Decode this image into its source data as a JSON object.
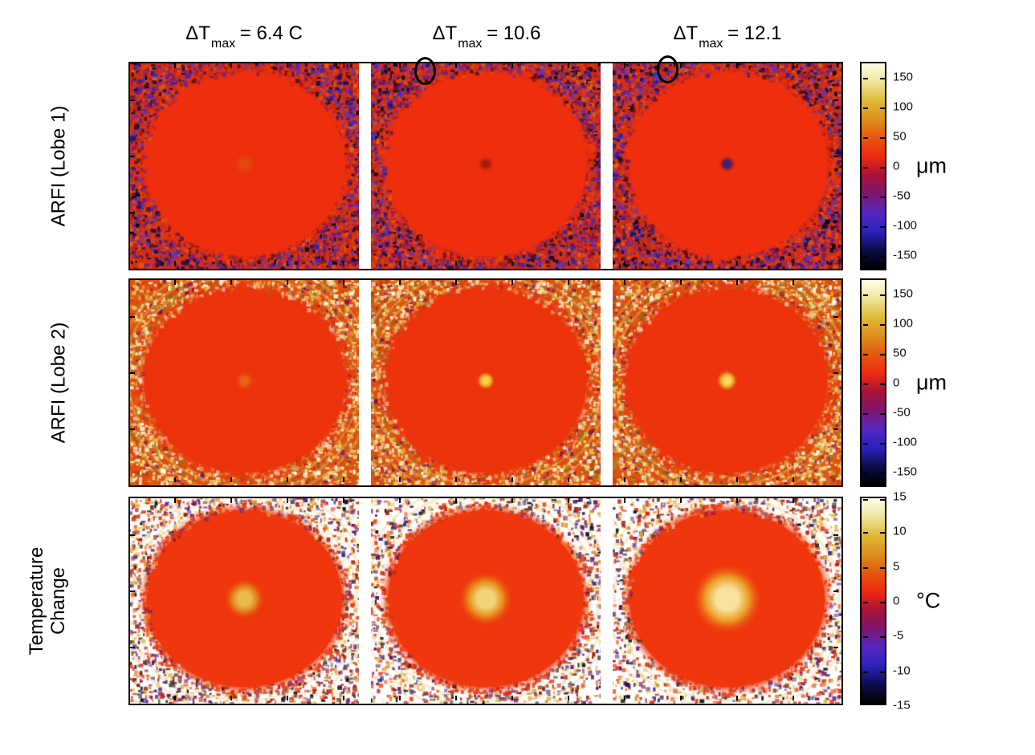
{
  "figure": {
    "column_titles": [
      {
        "prefix": "ΔT",
        "sub": "max",
        "rest": " = 6.4 C"
      },
      {
        "prefix": "ΔT",
        "sub": "max",
        "rest": " = 10.6"
      },
      {
        "prefix": "ΔT",
        "sub": "max",
        "rest": " = 12.1"
      }
    ],
    "row_labels": [
      "ARFI (Lobe 1)",
      "ARFI (Lobe 2)",
      "Temperature Change"
    ]
  },
  "chart_data": {
    "type": "heatmap",
    "grid": "3 rows x 3 columns of parametric images; each row shares one colorbar",
    "columns": [
      "ΔTmax = 6.4 C",
      "ΔTmax = 10.6",
      "ΔTmax = 12.1"
    ],
    "rows": [
      {
        "label": "ARFI (Lobe 1)",
        "unit": "μm",
        "colorbar_ticks": [
          150,
          100,
          50,
          0,
          -50,
          -100,
          -150
        ],
        "colorbar_range": [
          -175,
          175
        ],
        "content": "large uniform red (≈0 μm) disc filling panel; blue/black/orange speckle noise in corners; small dark focal dot appears at panel center as ΔTmax increases (dark-blue dot at 12.1)"
      },
      {
        "label": "ARFI (Lobe 2)",
        "unit": "μm",
        "colorbar_ticks": [
          150,
          100,
          50,
          0,
          -50,
          -100,
          -150
        ],
        "colorbar_range": [
          -175,
          175
        ],
        "content": "large red disc; cream/yellow/white speckle noise in corners; bright yellow focal spot at center grows with ΔTmax"
      },
      {
        "label": "Temperature Change",
        "unit": "°C",
        "colorbar_ticks": [
          15,
          10,
          5,
          0,
          -5,
          -10,
          -15
        ],
        "colorbar_range": [
          -15,
          15
        ],
        "content": "red disc with yellow-white heated focal region at center growing with ΔTmax; white background with sparse colored speckle in corners"
      }
    ],
    "colormap_bottom_to_top": [
      "#000000",
      "#0d0b48",
      "#2a22bc",
      "#5527c2",
      "#7d1670",
      "#a8123a",
      "#ee2a10",
      "#e4570f",
      "#dd8f1b",
      "#dfba36",
      "#efe49a",
      "#fffdea"
    ],
    "annotations": [
      {
        "type": "circle-marker",
        "row": 0,
        "col": 1,
        "desc": "black ellipse marker straddling top edge of panel"
      },
      {
        "type": "circle-marker",
        "row": 0,
        "col": 2,
        "desc": "black ellipse marker straddling top edge of panel"
      }
    ],
    "legend_position": "right colorbars",
    "grid_lines": "off"
  },
  "render": {
    "rows": [
      {
        "noise_base": "#d8300e",
        "noise_density": 0.8,
        "noise_palette": [
          "#2a1db0",
          "#3c2cc4",
          "#150a52",
          "#000000",
          "#6a1a8a",
          "#e0490f",
          "#f23b10",
          "#c22208",
          "#4a3ad4",
          "#0a063a",
          "#8a1040",
          "#e06a10"
        ],
        "ripple_color": "rgba(70,45,210,0.28)",
        "disc_color": "#ee2e0d",
        "disc_rx": 0.452,
        "disc_ry": 0.462,
        "panels": [
          {
            "core": "#e25b12",
            "glow": "#dc4a10",
            "glowR": 15,
            "alpha": 0.55,
            "density": 1
          },
          {
            "core": "#96150a",
            "glow": "#c22410",
            "glowR": 11,
            "alpha": 0.8,
            "density": 1
          },
          {
            "core": "#23268c",
            "glow": "#a01a28",
            "glowR": 11,
            "alpha": 0.95,
            "coreStop": 0.32,
            "density": 1
          }
        ]
      },
      {
        "noise_base": "#e05510",
        "noise_density": 0.8,
        "noise_palette": [
          "#f7f2c8",
          "#efe08a",
          "#d9b83a",
          "#ffffff",
          "#a8862a",
          "#f23b10",
          "#d84a10",
          "#7a1458",
          "#e8d060",
          "#fdfbe0",
          "#c23a0a",
          "#8a6a18"
        ],
        "ripple_color": "rgba(235,210,120,0.35)",
        "disc_color": "#ec330c",
        "disc_rx": 0.452,
        "disc_ry": 0.462,
        "panels": [
          {
            "core": "#ea8418",
            "glow": "#e45c12",
            "glowR": 13,
            "alpha": 0.6,
            "density": 1
          },
          {
            "core": "#ffd84e",
            "glow": "#efa01e",
            "glowR": 12,
            "alpha": 0.95,
            "density": 1
          },
          {
            "core": "#ffe066",
            "glow": "#efa01e",
            "glowR": 14,
            "alpha": 0.95,
            "density": 1
          }
        ]
      },
      {
        "noise_base": "#ffffff",
        "noise_density": 0.58,
        "noise_palette": [
          "#f23b10",
          "#d82a0a",
          "#e8c050",
          "#141414",
          "#5a1070",
          "#d89020",
          "#ffffff",
          "#f2f0e0",
          "#a01a08",
          "#3a2a90"
        ],
        "ripple_color": "rgba(230,180,80,0.25)",
        "disc_color": "#ef360c",
        "disc_rx": 0.44,
        "disc_ry": 0.445,
        "panels": [
          {
            "core": "#e9c654",
            "glow": "#e2821a",
            "glowR": 27,
            "alpha": 0.92,
            "density": 1.1
          },
          {
            "core": "#f2dc80",
            "glow": "#e8921c",
            "glowR": 36,
            "alpha": 0.95,
            "density": 0.88
          },
          {
            "core": "#f8eca6",
            "glow": "#eaa224",
            "glowR": 46,
            "alpha": 0.95,
            "density": 0.85
          }
        ]
      }
    ]
  }
}
